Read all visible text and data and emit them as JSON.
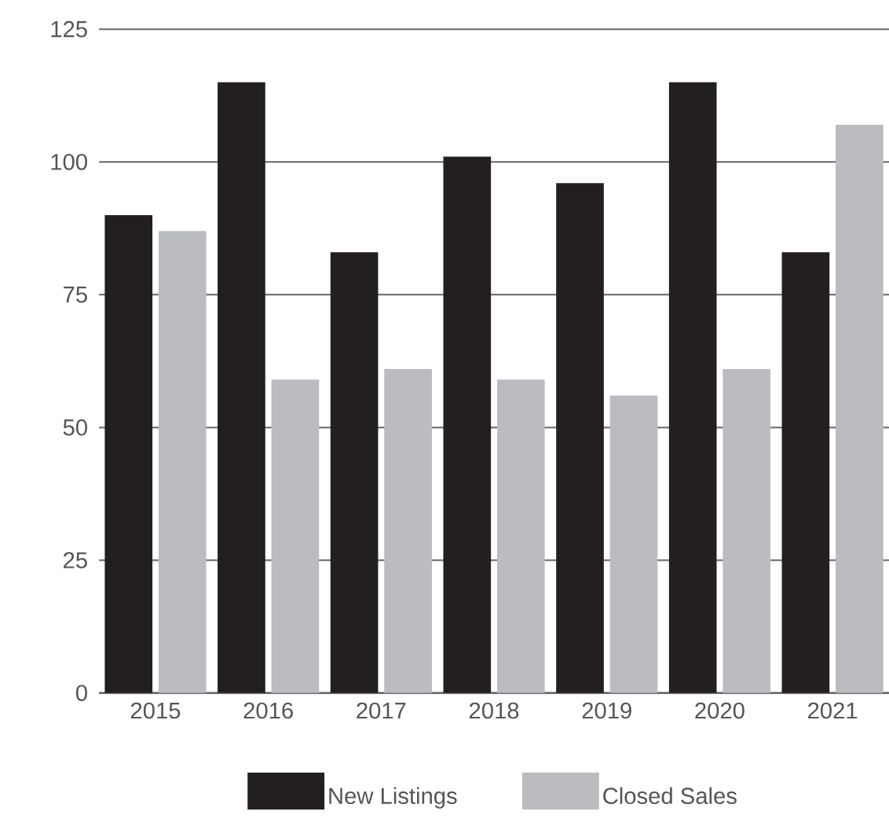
{
  "chart_data": {
    "type": "bar",
    "categories": [
      "2015",
      "2016",
      "2017",
      "2018",
      "2019",
      "2020",
      "2021"
    ],
    "series": [
      {
        "name": "New Listings",
        "color": "#231f20",
        "values": [
          90,
          115,
          83,
          101,
          96,
          115,
          83
        ]
      },
      {
        "name": "Closed Sales",
        "color": "#bbbcbf",
        "values": [
          87,
          59,
          61,
          59,
          56,
          61,
          107
        ]
      }
    ],
    "ylim": [
      0,
      125
    ],
    "yticks": [
      0,
      25,
      50,
      75,
      100,
      125
    ],
    "grid": "y",
    "legend": "bottom"
  }
}
